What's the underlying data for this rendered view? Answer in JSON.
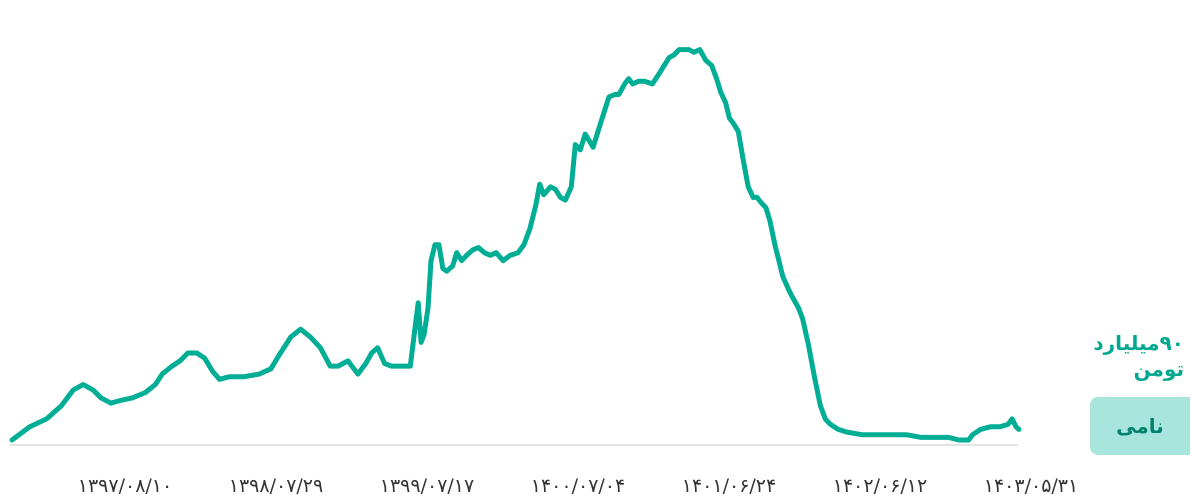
{
  "chart_data": {
    "type": "line",
    "title": "",
    "xlabel": "",
    "ylabel": "",
    "grid": false,
    "legend": "none",
    "line_color": "#00ad95",
    "tick_labels": [
      "۱۳۹۷/۰۸/۱۰",
      "۱۳۹۸/۰۷/۲۹",
      "۱۳۹۹/۰۷/۱۷",
      "۱۴۰۰/۰۷/۰۴",
      "۱۴۰۱/۰۶/۲۴",
      "۱۴۰۲/۰۶/۱۲",
      "۱۴۰۳/۰۵/۳۱"
    ],
    "ylim": [
      0,
      160
    ],
    "series": [
      {
        "values": [
          [
            0,
            0
          ],
          [
            18,
            5
          ],
          [
            35,
            8
          ],
          [
            50,
            13
          ],
          [
            62,
            19
          ],
          [
            72,
            21
          ],
          [
            82,
            19
          ],
          [
            90,
            16
          ],
          [
            100,
            14
          ],
          [
            110,
            15
          ],
          [
            122,
            16
          ],
          [
            135,
            18
          ],
          [
            145,
            21
          ],
          [
            152,
            25
          ],
          [
            162,
            28
          ],
          [
            170,
            30
          ],
          [
            178,
            33
          ],
          [
            187,
            33
          ],
          [
            195,
            31
          ],
          [
            203,
            26
          ],
          [
            210,
            23
          ],
          [
            220,
            24
          ],
          [
            235,
            24
          ],
          [
            250,
            25
          ],
          [
            262,
            27
          ],
          [
            270,
            32
          ],
          [
            282,
            39
          ],
          [
            292,
            42
          ],
          [
            302,
            39
          ],
          [
            312,
            35
          ],
          [
            322,
            28
          ],
          [
            330,
            28
          ],
          [
            340,
            30
          ],
          [
            350,
            25
          ],
          [
            358,
            29
          ],
          [
            364,
            33
          ],
          [
            370,
            35
          ],
          [
            377,
            29
          ],
          [
            384,
            28
          ],
          [
            395,
            28
          ],
          [
            403,
            28
          ],
          [
            408,
            43
          ],
          [
            411,
            52
          ],
          [
            414,
            37
          ],
          [
            417,
            40
          ],
          [
            421,
            50
          ],
          [
            424,
            68
          ],
          [
            428,
            74
          ],
          [
            432,
            74
          ],
          [
            436,
            65
          ],
          [
            440,
            64
          ],
          [
            446,
            66
          ],
          [
            450,
            71
          ],
          [
            455,
            68
          ],
          [
            460,
            70
          ],
          [
            466,
            72
          ],
          [
            472,
            73
          ],
          [
            478,
            71
          ],
          [
            484,
            70
          ],
          [
            490,
            71
          ],
          [
            497,
            68
          ],
          [
            504,
            70
          ],
          [
            512,
            71
          ],
          [
            518,
            74
          ],
          [
            524,
            80
          ],
          [
            530,
            89
          ],
          [
            534,
            97
          ],
          [
            538,
            93
          ],
          [
            545,
            96
          ],
          [
            550,
            95
          ],
          [
            555,
            92
          ],
          [
            560,
            91
          ],
          [
            566,
            96
          ],
          [
            570,
            112
          ],
          [
            575,
            110
          ],
          [
            580,
            116
          ],
          [
            588,
            111
          ],
          [
            593,
            117
          ],
          [
            598,
            123
          ],
          [
            604,
            130
          ],
          [
            610,
            131
          ],
          [
            614,
            131
          ],
          [
            620,
            135
          ],
          [
            624,
            137
          ],
          [
            628,
            135
          ],
          [
            634,
            136
          ],
          [
            640,
            136
          ],
          [
            648,
            135
          ],
          [
            655,
            139
          ],
          [
            660,
            142
          ],
          [
            665,
            145
          ],
          [
            670,
            146
          ],
          [
            675,
            148
          ],
          [
            680,
            148
          ],
          [
            685,
            148
          ],
          [
            690,
            147
          ],
          [
            696,
            148
          ],
          [
            702,
            144
          ],
          [
            708,
            142
          ],
          [
            713,
            137
          ],
          [
            717,
            132
          ],
          [
            722,
            128
          ],
          [
            726,
            122
          ],
          [
            730,
            120
          ],
          [
            735,
            117
          ],
          [
            740,
            106
          ],
          [
            745,
            96
          ],
          [
            750,
            92
          ],
          [
            754,
            92
          ],
          [
            758,
            90
          ],
          [
            763,
            88
          ],
          [
            767,
            83
          ],
          [
            772,
            74
          ],
          [
            776,
            68
          ],
          [
            780,
            62
          ],
          [
            786,
            57
          ],
          [
            790,
            54
          ],
          [
            796,
            50
          ],
          [
            800,
            46
          ],
          [
            806,
            36
          ],
          [
            812,
            24
          ],
          [
            818,
            13
          ],
          [
            823,
            8
          ],
          [
            828,
            6
          ],
          [
            836,
            4
          ],
          [
            845,
            3
          ],
          [
            860,
            2
          ],
          [
            875,
            2
          ],
          [
            890,
            2
          ],
          [
            905,
            2
          ],
          [
            920,
            1
          ],
          [
            935,
            1
          ],
          [
            948,
            1
          ],
          [
            958,
            0
          ],
          [
            968,
            0
          ],
          [
            972,
            2
          ],
          [
            980,
            4
          ],
          [
            990,
            5
          ],
          [
            1000,
            5
          ],
          [
            1008,
            6
          ],
          [
            1012,
            8
          ],
          [
            1016,
            5
          ],
          [
            1019,
            4
          ]
        ]
      }
    ]
  },
  "value_label": "۹۰میلیارد تومن",
  "tag_label": "نامی"
}
